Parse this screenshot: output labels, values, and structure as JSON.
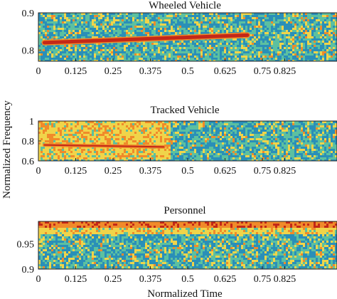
{
  "colors": {
    "low": "#2a8fb8",
    "mid_low": "#5cc0a0",
    "mid": "#f0d44a",
    "high": "#f08a2a",
    "peak": "#c42818"
  },
  "chart_data": [
    {
      "type": "heatmap",
      "title": "Wheeled Vehicle",
      "xlabel": "",
      "ylabel": "",
      "xlim": [
        0,
        1
      ],
      "ylim": [
        0.77,
        0.9
      ],
      "x_ticks": [
        0,
        0.125,
        0.25,
        0.375,
        0.5,
        0.625,
        0.75,
        0.825
      ],
      "x_tick_labels": [
        "0",
        "0.125",
        "0.25",
        "0.375",
        "0.5",
        "0.625",
        "0.75",
        "0.825"
      ],
      "y_ticks": [
        0.8,
        0.9
      ],
      "y_tick_labels": [
        "0.8",
        "0.9"
      ],
      "features": [
        {
          "kind": "chirp",
          "x_start": 0.02,
          "x_end": 0.7,
          "y_start": 0.82,
          "y_end": 0.84,
          "intensity": "peak"
        }
      ],
      "background": "noise"
    },
    {
      "type": "heatmap",
      "title": "Tracked Vehicle",
      "xlabel": "",
      "ylabel": "",
      "xlim": [
        0,
        1
      ],
      "ylim": [
        0.6,
        1.0
      ],
      "x_ticks": [
        0,
        0.125,
        0.25,
        0.375,
        0.5,
        0.625,
        0.75,
        0.825
      ],
      "x_tick_labels": [
        "0",
        "0.125",
        "0.25",
        "0.375",
        "0.5",
        "0.625",
        "0.75",
        "0.825"
      ],
      "y_ticks": [
        0.6,
        0.8,
        1.0
      ],
      "y_tick_labels": [
        "0.6",
        "0.8",
        "1"
      ],
      "features": [
        {
          "kind": "block",
          "x_start": 0.0,
          "x_end": 0.44,
          "y_start": 0.62,
          "y_end": 1.0,
          "intensity": "mid"
        },
        {
          "kind": "line",
          "x_start": 0.02,
          "x_end": 0.42,
          "y_start": 0.76,
          "y_end": 0.74,
          "intensity": "peak"
        }
      ],
      "background": "noise"
    },
    {
      "type": "heatmap",
      "title": "Personnel",
      "xlabel": "Normalized Time",
      "ylabel": "",
      "xlim": [
        0,
        1
      ],
      "ylim": [
        0.9,
        0.995
      ],
      "x_ticks": [
        0,
        0.125,
        0.25,
        0.375,
        0.5,
        0.625,
        0.75,
        0.825
      ],
      "x_tick_labels": [
        "0",
        "0.125",
        "0.25",
        "0.375",
        "0.5",
        "0.625",
        "0.75",
        "0.825"
      ],
      "y_ticks": [
        0.9,
        0.95
      ],
      "y_tick_labels": [
        "0.9",
        "0.95"
      ],
      "features": [
        {
          "kind": "band",
          "x_start": 0.0,
          "x_end": 1.0,
          "y_start": 0.97,
          "y_end": 0.995,
          "intensity": "high"
        }
      ],
      "background": "noise"
    }
  ],
  "shared_ylabel": "Normalized Frequency"
}
